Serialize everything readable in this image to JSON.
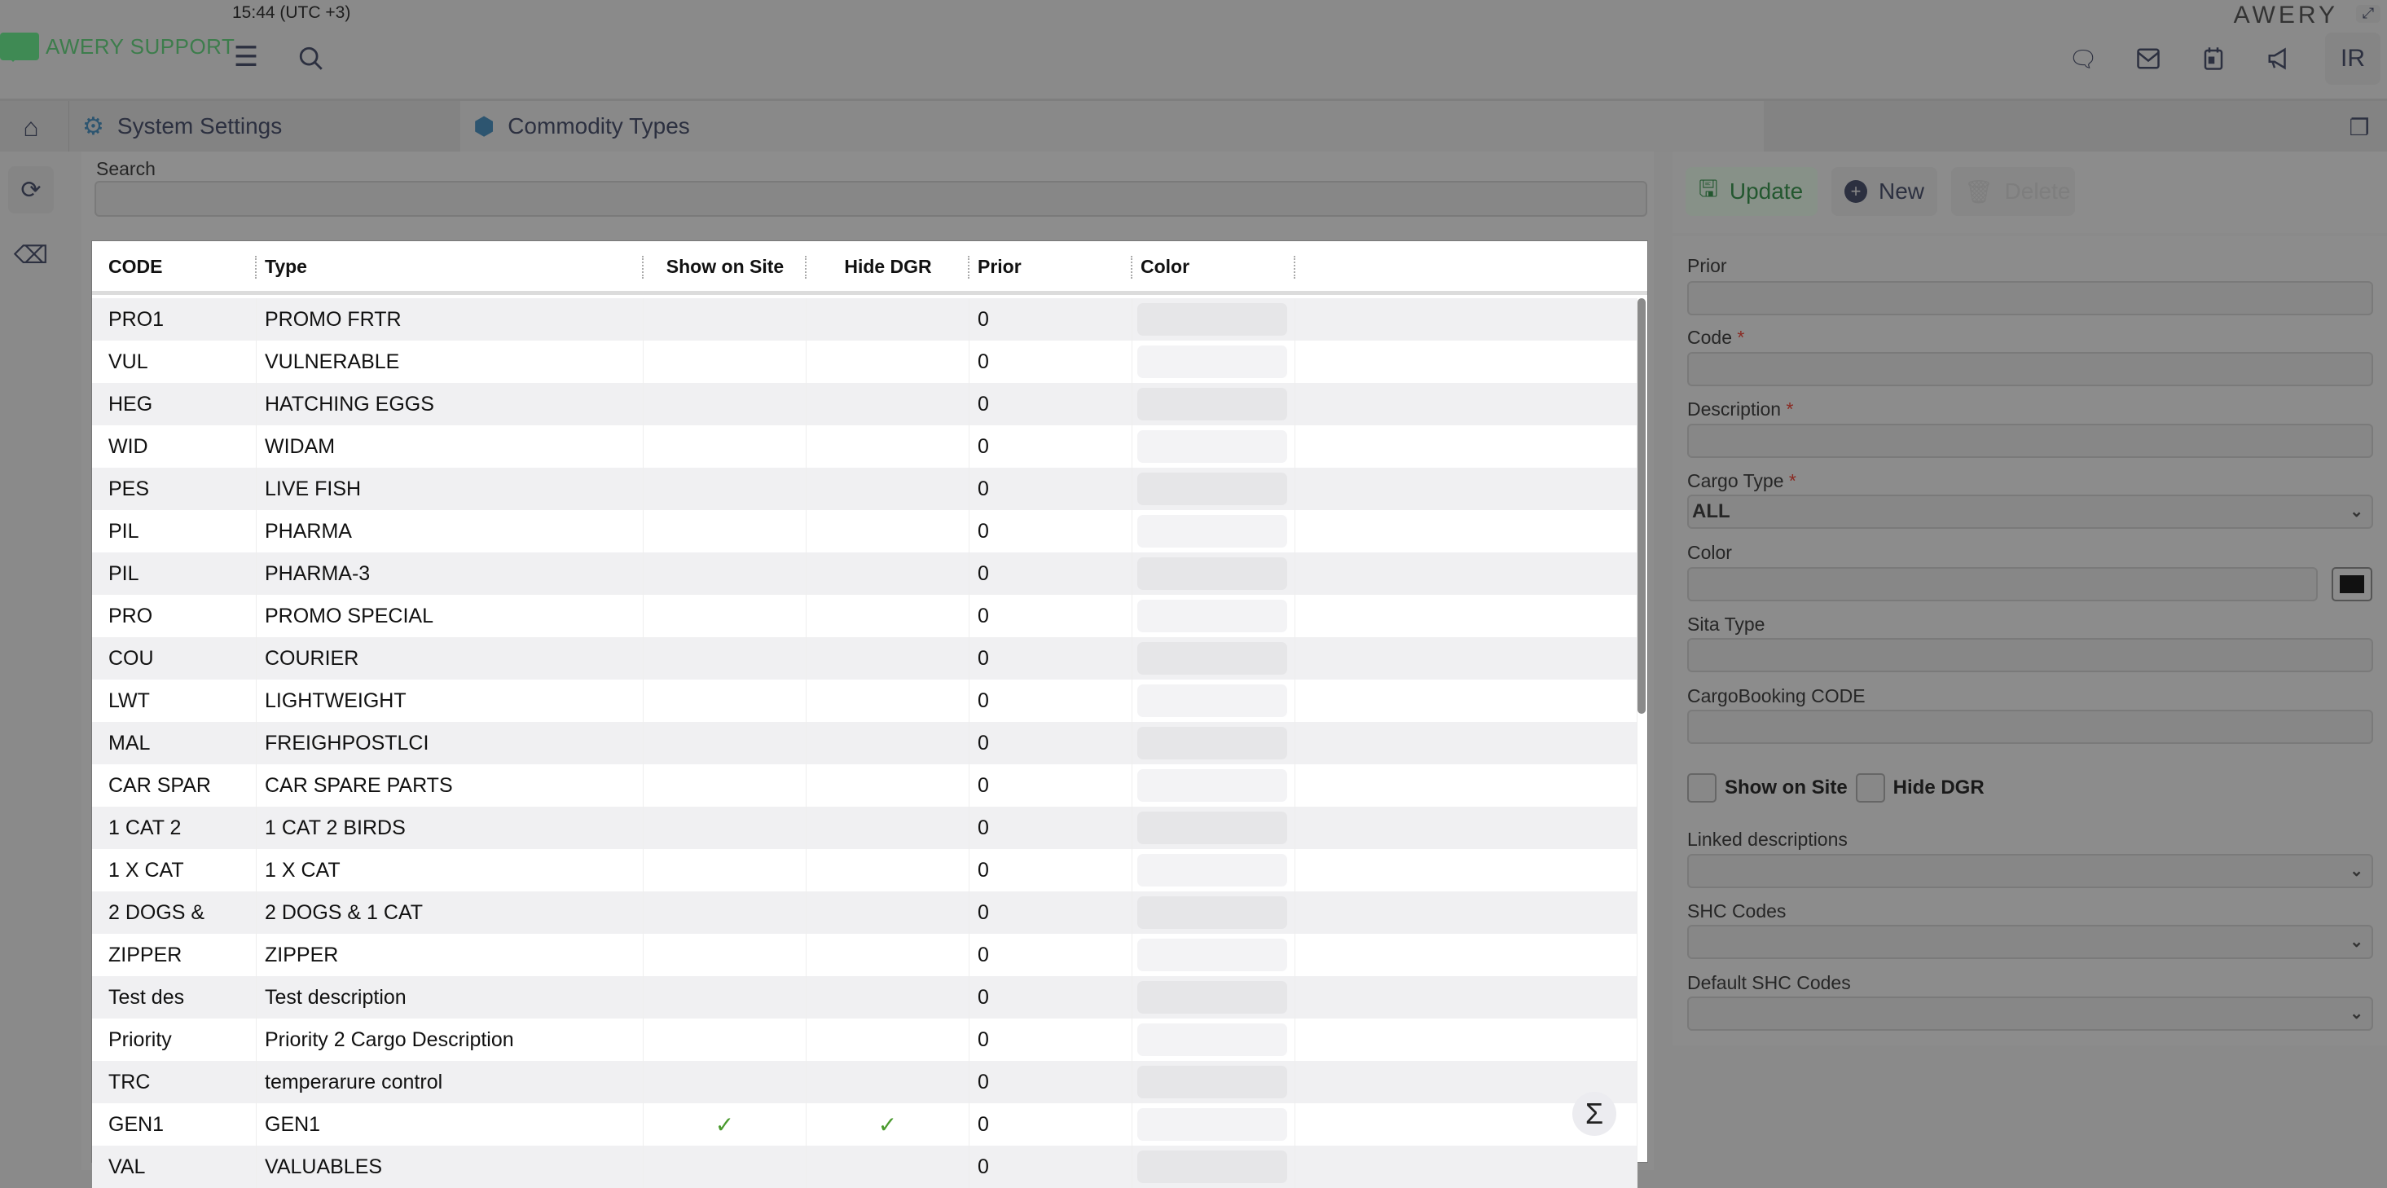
{
  "header": {
    "time": "15:44 (UTC +3)",
    "app_name": "AWERY SUPPORT",
    "brand": "AWERY",
    "avatar_initials": "IR",
    "icons": [
      "menu-icon",
      "search-icon",
      "chat-icon",
      "mail-icon",
      "calendar-icon",
      "megaphone-icon"
    ]
  },
  "tabs": [
    {
      "label": "System Settings",
      "icon": "gear-icon"
    },
    {
      "label": "Commodity Types",
      "icon": "hexagon-icon",
      "active": true
    }
  ],
  "search": {
    "label": "Search",
    "value": ""
  },
  "table": {
    "columns": [
      "CODE",
      "Type",
      "Show on Site",
      "Hide DGR",
      "Prior",
      "Color"
    ],
    "rows": [
      {
        "code": "PRO1",
        "type": "PROMO FRTR",
        "show": false,
        "hide": false,
        "prior": "0"
      },
      {
        "code": "VUL",
        "type": "VULNERABLE",
        "show": false,
        "hide": false,
        "prior": "0"
      },
      {
        "code": "HEG",
        "type": "HATCHING EGGS",
        "show": false,
        "hide": false,
        "prior": "0"
      },
      {
        "code": "WID",
        "type": "WIDAM",
        "show": false,
        "hide": false,
        "prior": "0"
      },
      {
        "code": "PES",
        "type": "LIVE FISH",
        "show": false,
        "hide": false,
        "prior": "0"
      },
      {
        "code": "PIL",
        "type": "PHARMA",
        "show": false,
        "hide": false,
        "prior": "0"
      },
      {
        "code": "PIL",
        "type": "PHARMA-3",
        "show": false,
        "hide": false,
        "prior": "0"
      },
      {
        "code": "PRO",
        "type": "PROMO SPECIAL",
        "show": false,
        "hide": false,
        "prior": "0"
      },
      {
        "code": "COU",
        "type": "COURIER",
        "show": false,
        "hide": false,
        "prior": "0"
      },
      {
        "code": "LWT",
        "type": "LIGHTWEIGHT",
        "show": false,
        "hide": false,
        "prior": "0"
      },
      {
        "code": "MAL",
        "type": "FREIGHPOSTLCI",
        "show": false,
        "hide": false,
        "prior": "0"
      },
      {
        "code": "CAR SPAR",
        "type": "CAR SPARE PARTS",
        "show": false,
        "hide": false,
        "prior": "0"
      },
      {
        "code": "1 CAT 2",
        "type": "1 CAT 2 BIRDS",
        "show": false,
        "hide": false,
        "prior": "0"
      },
      {
        "code": "1 X CAT",
        "type": "1 X CAT",
        "show": false,
        "hide": false,
        "prior": "0"
      },
      {
        "code": "2 DOGS &",
        "type": "2 DOGS & 1 CAT",
        "show": false,
        "hide": false,
        "prior": "0"
      },
      {
        "code": "ZIPPER",
        "type": "ZIPPER",
        "show": false,
        "hide": false,
        "prior": "0"
      },
      {
        "code": "Test des",
        "type": "Test description",
        "show": false,
        "hide": false,
        "prior": "0"
      },
      {
        "code": "Priority",
        "type": "Priority 2 Cargo Description",
        "show": false,
        "hide": false,
        "prior": "0"
      },
      {
        "code": "TRC",
        "type": "temperarure control",
        "show": false,
        "hide": false,
        "prior": "0"
      },
      {
        "code": "GEN1",
        "type": "GEN1",
        "show": true,
        "hide": true,
        "prior": "0"
      },
      {
        "code": "VAL",
        "type": "VALUABLES",
        "show": false,
        "hide": false,
        "prior": "0"
      }
    ],
    "sum_icon": "Σ"
  },
  "actions": {
    "update": "Update",
    "new": "New",
    "delete": "Delete"
  },
  "form": {
    "prior": {
      "label": "Prior",
      "value": ""
    },
    "code": {
      "label": "Code",
      "required": "*",
      "value": ""
    },
    "description": {
      "label": "Description",
      "required": "*",
      "value": ""
    },
    "cargo_type": {
      "label": "Cargo Type",
      "required": "*",
      "value": "ALL"
    },
    "color": {
      "label": "Color",
      "value": "",
      "swatch": "#111111"
    },
    "sita_type": {
      "label": "Sita Type",
      "value": ""
    },
    "cargobooking_code": {
      "label": "CargoBooking CODE",
      "value": ""
    },
    "show_on_site": {
      "label": "Show on Site",
      "checked": false
    },
    "hide_dgr": {
      "label": "Hide DGR",
      "checked": false
    },
    "linked_descriptions": {
      "label": "Linked descriptions",
      "value": ""
    },
    "shc_codes": {
      "label": "SHC Codes",
      "value": ""
    },
    "default_shc_codes": {
      "label": "Default SHC Codes",
      "value": ""
    }
  },
  "colors": {
    "accent_green": "#3d7d4c",
    "check_green": "#4a9a2e",
    "required_red": "#8a2a22"
  }
}
